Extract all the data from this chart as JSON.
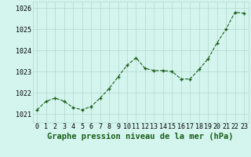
{
  "x": [
    0,
    1,
    2,
    3,
    4,
    5,
    6,
    7,
    8,
    9,
    10,
    11,
    12,
    13,
    14,
    15,
    16,
    17,
    18,
    19,
    20,
    21,
    22,
    23
  ],
  "y": [
    1021.2,
    1021.6,
    1021.75,
    1021.6,
    1021.3,
    1021.2,
    1021.35,
    1021.75,
    1022.2,
    1022.75,
    1023.3,
    1023.65,
    1023.15,
    1023.05,
    1023.05,
    1023.0,
    1022.65,
    1022.65,
    1023.1,
    1023.6,
    1024.35,
    1025.0,
    1025.8,
    1025.75
  ],
  "line_color": "#1a5e1a",
  "marker_color": "#1a5e1a",
  "bg_color": "#d4f5ee",
  "grid_color": "#b0d8cc",
  "title": "Graphe pression niveau de la mer (hPa)",
  "ylim_min": 1020.6,
  "ylim_max": 1026.3,
  "yticks": [
    1021,
    1022,
    1023,
    1024,
    1025,
    1026
  ],
  "xticks": [
    0,
    1,
    2,
    3,
    4,
    5,
    6,
    7,
    8,
    9,
    10,
    11,
    12,
    13,
    14,
    15,
    16,
    17,
    18,
    19,
    20,
    21,
    22,
    23
  ],
  "title_fontsize": 7.5,
  "tick_fontsize": 6.0
}
